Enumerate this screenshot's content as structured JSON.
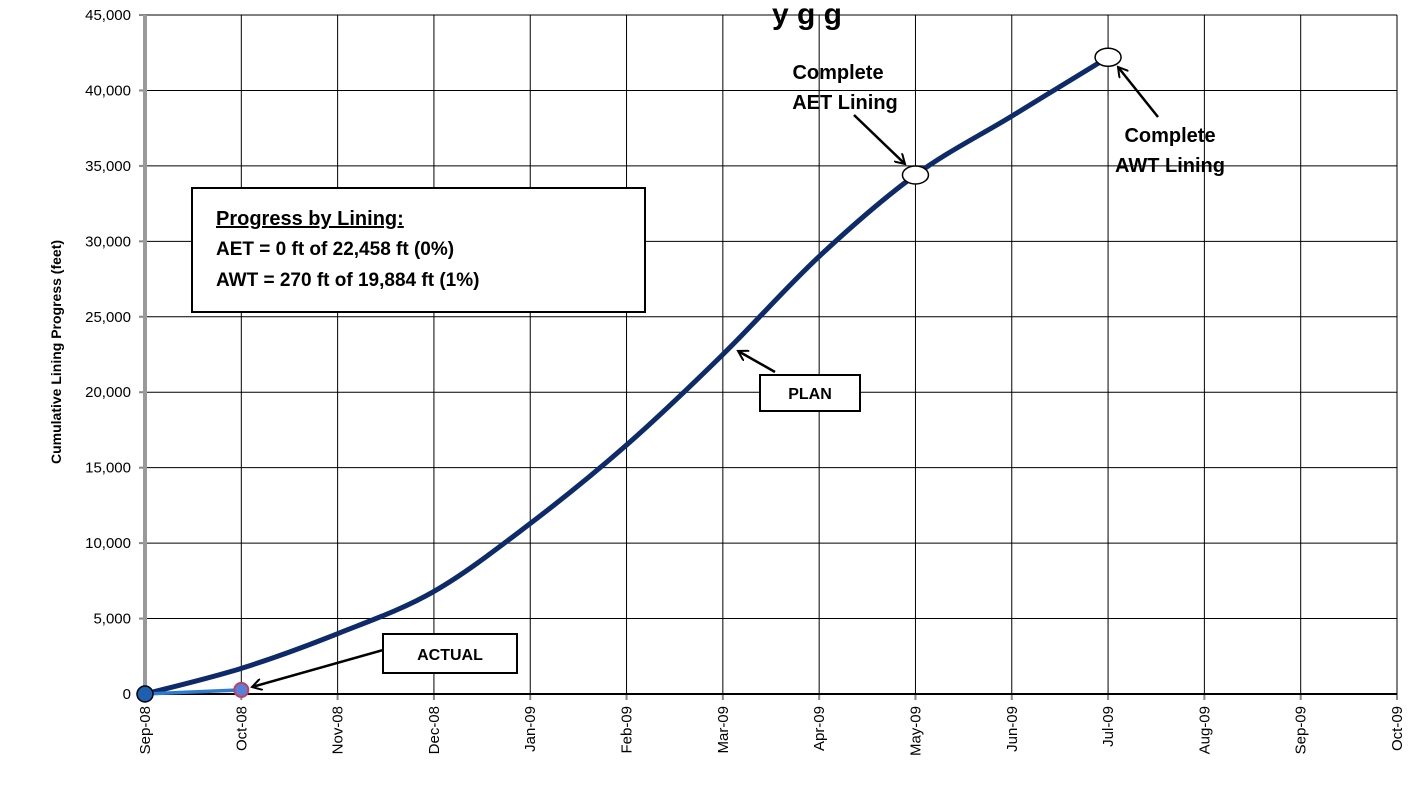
{
  "chart_data": {
    "type": "line",
    "title": "",
    "title_visible_fragment": "y      g  g",
    "xlabel": "",
    "ylabel": "Cumulative  Lining Progress (feet)",
    "x_ticks": [
      "Sep-08",
      "Oct-08",
      "Nov-08",
      "Dec-08",
      "Jan-09",
      "Feb-09",
      "Mar-09",
      "Apr-09",
      "May-09",
      "Jun-09",
      "Jul-09",
      "Aug-09",
      "Sep-09",
      "Oct-09"
    ],
    "y_ticks": [
      "0",
      "5,000",
      "10,000",
      "15,000",
      "20,000",
      "25,000",
      "30,000",
      "35,000",
      "40,000",
      "45,000"
    ],
    "ylim": [
      0,
      45000
    ],
    "grid": true,
    "series": [
      {
        "name": "PLAN",
        "color": "#0d2a6b",
        "points": [
          {
            "x": "2008-09-01",
            "y": 0
          },
          {
            "x": "2008-10-01",
            "y": 1700
          },
          {
            "x": "2008-11-01",
            "y": 4000
          },
          {
            "x": "2008-12-01",
            "y": 6800
          },
          {
            "x": "2009-01-01",
            "y": 11300
          },
          {
            "x": "2009-02-01",
            "y": 16500
          },
          {
            "x": "2009-03-01",
            "y": 22500
          },
          {
            "x": "2009-04-01",
            "y": 29000
          },
          {
            "x": "2009-05-01",
            "y": 34400
          },
          {
            "x": "2009-06-01",
            "y": 38300
          },
          {
            "x": "2009-07-01",
            "y": 42200
          }
        ]
      },
      {
        "name": "ACTUAL",
        "color": "#2e7bd0",
        "points": [
          {
            "x": "2008-09-01",
            "y": 0
          },
          {
            "x": "2008-10-01",
            "y": 270
          }
        ]
      }
    ],
    "milestones": [
      {
        "x": "2009-05-01",
        "y": 34400,
        "label_lines": [
          "Complete",
          "AET Lining"
        ]
      },
      {
        "x": "2009-07-01",
        "y": 42200,
        "label_lines": [
          "Complete",
          "AWT Lining"
        ]
      }
    ],
    "series_labels": {
      "plan": "PLAN",
      "actual": "ACTUAL"
    },
    "progress_box": {
      "heading": "Progress by Lining:",
      "lines": [
        "AET = 0 ft of 22,458 ft (0%)",
        "AWT = 270 ft of 19,884 ft (1%)"
      ]
    }
  }
}
